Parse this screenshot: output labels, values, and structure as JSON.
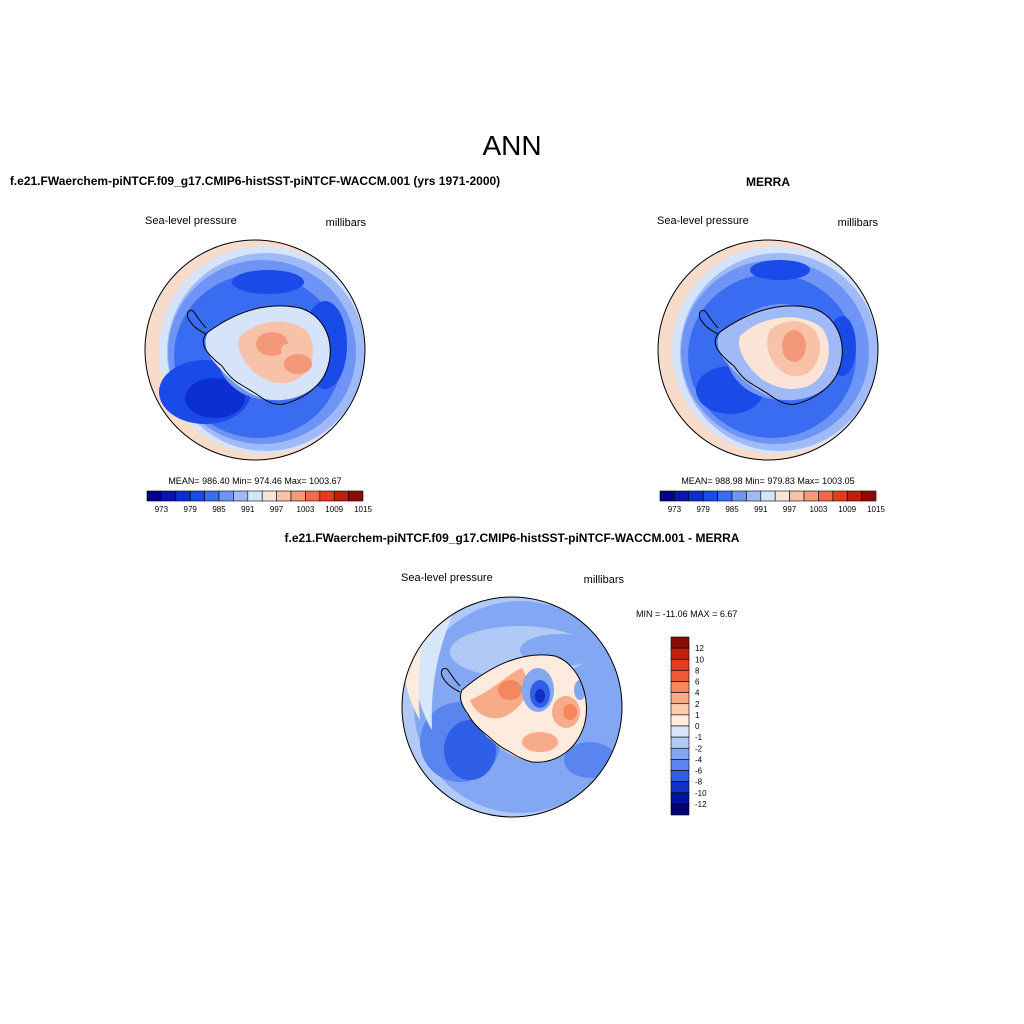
{
  "figure": {
    "title": "ANN"
  },
  "chart_data": [
    {
      "type": "heatmap",
      "projection": "south polar stereographic",
      "title": "f.e21.FWaerchem-piNTCF.f09_g17.CMIP6-histSST-piNTCF-WACCM.001 (yrs 1971-2000)",
      "left_label": "Sea-level pressure",
      "right_label": "millibars",
      "stats": "MEAN= 986.40   Min= 974.46   Max= 1003.67",
      "colorbar": {
        "orientation": "horizontal",
        "levels": [
          973,
          976,
          979,
          982,
          985,
          988,
          991,
          994,
          997,
          1000,
          1003,
          1006,
          1009,
          1012,
          1015
        ],
        "tick_labels": [
          "973",
          "979",
          "985",
          "991",
          "997",
          "1003",
          "1009",
          "1015"
        ],
        "colors": [
          "#00008a",
          "#0a14b0",
          "#0b2fd0",
          "#1a4ae8",
          "#3a6cf2",
          "#6e95f5",
          "#9fbaf7",
          "#d6e4fb",
          "#fbe4d6",
          "#f8c2a8",
          "#f4987a",
          "#ef6a4a",
          "#e33d1e",
          "#bf1f0c",
          "#8a0a04"
        ]
      }
    },
    {
      "type": "heatmap",
      "projection": "south polar stereographic",
      "title": "MERRA",
      "left_label": "Sea-level pressure",
      "right_label": "millibars",
      "stats": "MEAN= 988.98   Min= 979.83   Max= 1003.05",
      "colorbar": {
        "orientation": "horizontal",
        "levels": [
          973,
          976,
          979,
          982,
          985,
          988,
          991,
          994,
          997,
          1000,
          1003,
          1006,
          1009,
          1012,
          1015
        ],
        "tick_labels": [
          "973",
          "979",
          "985",
          "991",
          "997",
          "1003",
          "1009",
          "1015"
        ],
        "colors": [
          "#00008a",
          "#0a14b0",
          "#0b2fd0",
          "#1a4ae8",
          "#3a6cf2",
          "#6e95f5",
          "#9fbaf7",
          "#d6e4fb",
          "#fbe4d6",
          "#f8c2a8",
          "#f4987a",
          "#ef6a4a",
          "#e33d1e",
          "#bf1f0c",
          "#8a0a04"
        ]
      }
    },
    {
      "type": "heatmap",
      "projection": "south polar stereographic",
      "title": "f.e21.FWaerchem-piNTCF.f09_g17.CMIP6-histSST-piNTCF-WACCM.001 - MERRA",
      "left_label": "Sea-level pressure",
      "right_label": "millibars",
      "stats": "MIN = -11.06 MAX =   6.67",
      "colorbar": {
        "orientation": "vertical",
        "tick_labels": [
          "12",
          "10",
          "8",
          "6",
          "4",
          "2",
          "1",
          "0",
          "-1",
          "-2",
          "-4",
          "-6",
          "-8",
          "-10",
          "-12"
        ],
        "colors": [
          "#8a0a04",
          "#bf1f0c",
          "#e33d1e",
          "#ef5a36",
          "#f4875e",
          "#f8ab88",
          "#fbccb2",
          "#fdebdd",
          "#d8e6fb",
          "#b0c9f7",
          "#83a7f3",
          "#5a85ef",
          "#2f5fe6",
          "#1030c8",
          "#0014a0",
          "#00006e"
        ]
      }
    }
  ]
}
